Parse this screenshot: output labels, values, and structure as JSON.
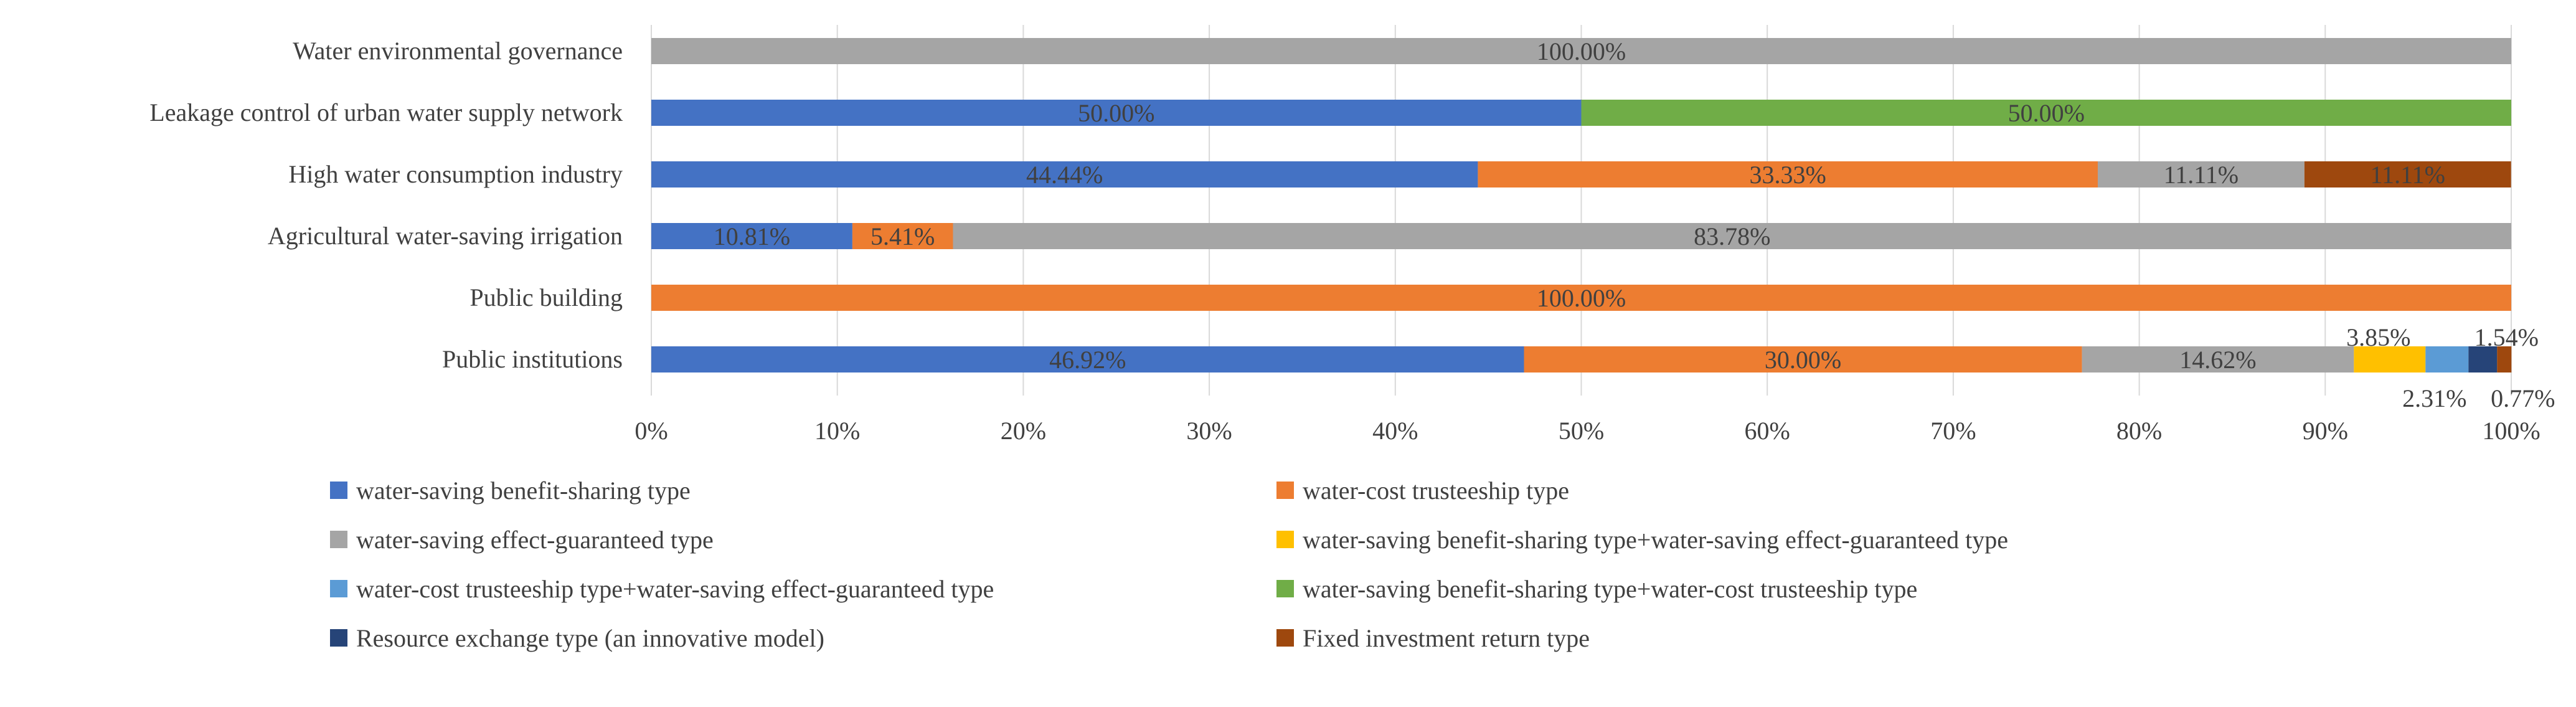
{
  "chart_data": {
    "type": "bar",
    "orientation": "horizontal",
    "stacked": "percent",
    "title": "",
    "xlabel": "",
    "ylabel": "",
    "xlim": [
      0,
      100
    ],
    "x_ticks": [
      "0%",
      "10%",
      "20%",
      "30%",
      "40%",
      "50%",
      "60%",
      "70%",
      "80%",
      "90%",
      "100%"
    ],
    "grid": true,
    "legend_position": "bottom",
    "categories": [
      "Water environmental governance",
      "Leakage control of urban water supply network",
      "High water consumption industry",
      "Agricultural water-saving irrigation",
      "Public building",
      "Public institutions"
    ],
    "series": [
      {
        "name": "water-saving benefit-sharing type",
        "color": "#4472c4",
        "values": [
          0,
          50,
          44.44,
          10.81,
          0,
          46.92
        ],
        "labels": [
          "",
          "50.00%",
          "44.44%",
          "10.81%",
          "",
          "46.92%"
        ]
      },
      {
        "name": "water-cost trusteeship type",
        "color": "#ed7d31",
        "values": [
          0,
          0,
          33.33,
          5.41,
          100,
          30.0
        ],
        "labels": [
          "",
          "",
          "33.33%",
          "5.41%",
          "100.00%",
          "30.00%"
        ]
      },
      {
        "name": "water-saving effect-guaranteed type",
        "color": "#a5a5a5",
        "values": [
          100,
          0,
          11.11,
          83.78,
          0,
          14.62
        ],
        "labels": [
          "100.00%",
          "",
          "11.11%",
          "83.78%",
          "",
          "14.62%"
        ]
      },
      {
        "name": "water-saving benefit-sharing type+water-saving effect-guaranteed type",
        "color": "#ffc000",
        "values": [
          0,
          0,
          0,
          0,
          0,
          3.85
        ],
        "labels": [
          "",
          "",
          "",
          "",
          "",
          "3.85%"
        ]
      },
      {
        "name": "water-cost trusteeship type+water-saving effect-guaranteed type",
        "color": "#5b9bd5",
        "values": [
          0,
          0,
          0,
          0,
          0,
          2.31
        ],
        "labels": [
          "",
          "",
          "",
          "",
          "",
          "2.31%"
        ]
      },
      {
        "name": "water-saving benefit-sharing type+water-cost trusteeship type",
        "color": "#70ad47",
        "values": [
          0,
          50,
          0,
          0,
          0,
          0
        ],
        "labels": [
          "",
          "50.00%",
          "",
          "",
          "",
          ""
        ]
      },
      {
        "name": "Resource exchange type (an innovative model)",
        "color": "#264478",
        "values": [
          0,
          0,
          0,
          0,
          0,
          1.54
        ],
        "labels": [
          "",
          "",
          "",
          "",
          "",
          "1.54%"
        ]
      },
      {
        "name": "Fixed investment return type",
        "color": "#9e480e",
        "values": [
          0,
          0,
          11.11,
          0,
          0,
          0.77
        ],
        "labels": [
          "",
          "",
          "11.11%",
          "",
          "",
          "0.77%"
        ]
      }
    ]
  },
  "legend": {
    "items": [
      "water-saving benefit-sharing type",
      "water-cost trusteeship type",
      "water-saving effect-guaranteed type",
      "water-saving benefit-sharing type+water-saving effect-guaranteed type",
      "water-cost trusteeship type+water-saving effect-guaranteed type",
      "water-saving benefit-sharing type+water-cost trusteeship type",
      "Resource exchange type (an innovative model)",
      "Fixed investment return type"
    ]
  }
}
